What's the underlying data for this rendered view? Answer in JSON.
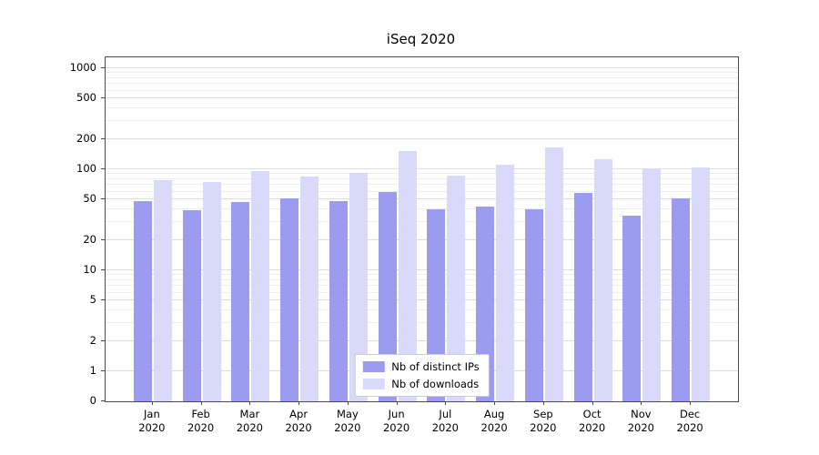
{
  "chart_data": {
    "type": "bar",
    "title": "iSeq 2020",
    "xlabel": "",
    "ylabel": "",
    "yscale": "symlog",
    "grid": true,
    "legend_position": "lower center",
    "yticks": [
      0,
      1,
      2,
      5,
      10,
      20,
      50,
      100,
      200,
      500,
      1000
    ],
    "ylim": [
      0,
      1283
    ],
    "categories": [
      "Jan",
      "Feb",
      "Mar",
      "Apr",
      "May",
      "Jun",
      "Jul",
      "Aug",
      "Sep",
      "Oct",
      "Nov",
      "Dec"
    ],
    "x_year": "2020",
    "series": [
      {
        "name": "Nb of distinct IPs",
        "color": "#9b9bef",
        "values": [
          48,
          39,
          47,
          51,
          48,
          60,
          40,
          43,
          40,
          58,
          35,
          52
        ]
      },
      {
        "name": "Nb of downloads",
        "color": "#d9d9fa",
        "values": [
          78,
          75,
          95,
          85,
          92,
          150,
          87,
          110,
          165,
          125,
          100,
          105
        ]
      }
    ]
  }
}
